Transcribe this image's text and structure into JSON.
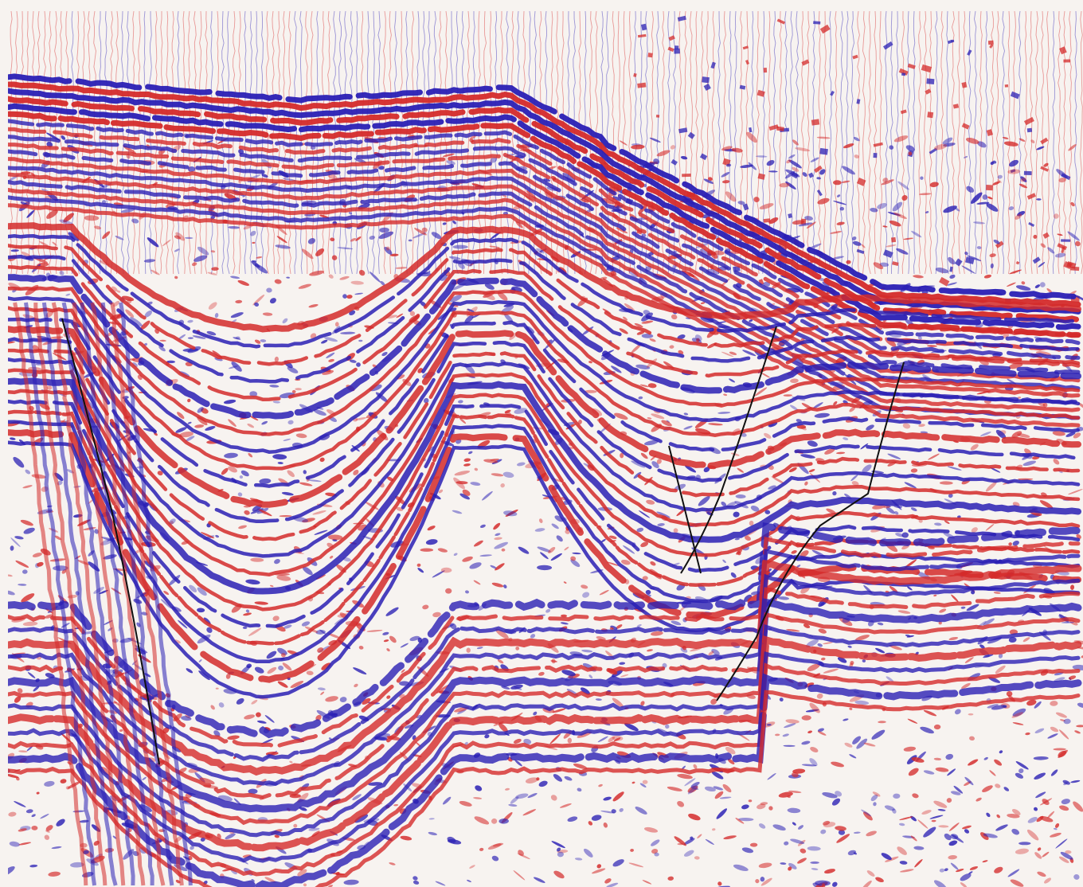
{
  "figure": {
    "title": "",
    "colors": {
      "background": "#f7f3f0",
      "positive": "#d42a2a",
      "negative": "#2a1fb4",
      "fault": "#111111"
    }
  }
}
